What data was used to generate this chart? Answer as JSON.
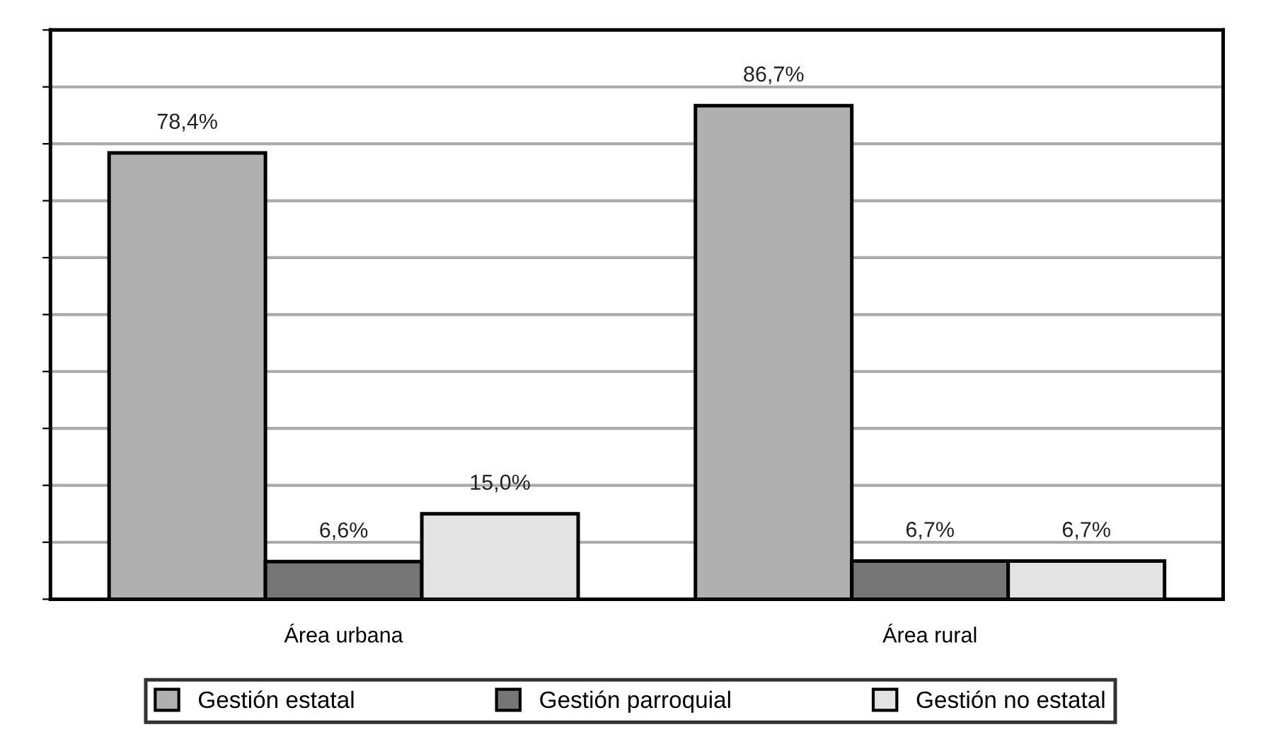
{
  "chart_data": {
    "type": "bar",
    "categories": [
      "Área urbana",
      "Área rural"
    ],
    "series": [
      {
        "name": "Gestión estatal",
        "color": "#b0b0b0",
        "values": [
          78.4,
          86.7
        ],
        "value_labels": [
          "78,4%",
          "86,7%"
        ]
      },
      {
        "name": "Gestión parroquial",
        "color": "#767676",
        "values": [
          6.6,
          6.7
        ],
        "value_labels": [
          "6,6%",
          "6,7%"
        ]
      },
      {
        "name": "Gestión no estatal",
        "color": "#e3e3e3",
        "values": [
          15.0,
          6.7
        ],
        "value_labels": [
          "15,0%",
          "6,7%"
        ]
      }
    ],
    "ylim": [
      0,
      100
    ],
    "yticks": [
      {
        "value": 0,
        "label": null
      },
      {
        "value": 10,
        "label": null
      },
      {
        "value": 20,
        "label": null
      },
      {
        "value": 30,
        "label": null
      },
      {
        "value": 40,
        "label": null
      },
      {
        "value": 50,
        "label": null
      },
      {
        "value": 60,
        "label": null
      },
      {
        "value": 70,
        "label": null
      },
      {
        "value": 80,
        "label": null
      },
      {
        "value": 90,
        "label": null
      },
      {
        "value": 100,
        "label": null
      }
    ],
    "grid": "y",
    "legend": "bottom",
    "tick_labels": "x"
  }
}
